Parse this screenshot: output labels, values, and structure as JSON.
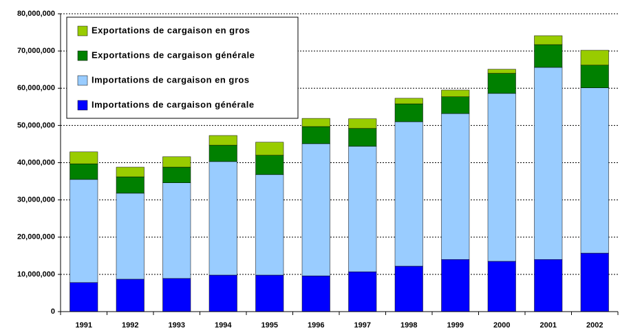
{
  "chart_data": {
    "type": "stacked-bar",
    "categories": [
      "1991",
      "1992",
      "1993",
      "1994",
      "1995",
      "1996",
      "1997",
      "1998",
      "1999",
      "2000",
      "2001",
      "2002"
    ],
    "series": [
      {
        "name": "Importations de cargaison générale",
        "color": "#0000ff",
        "values": [
          7800000,
          8700000,
          8900000,
          9800000,
          9800000,
          9600000,
          10700000,
          12200000,
          14000000,
          13500000,
          14000000,
          15700000
        ]
      },
      {
        "name": "Importations de cargaison en gros",
        "color": "#99ccff",
        "values": [
          27700000,
          23100000,
          25700000,
          30500000,
          27000000,
          35500000,
          33700000,
          38800000,
          39200000,
          45100000,
          51600000,
          44400000
        ]
      },
      {
        "name": "Exportations de cargaison générale",
        "color": "#008000",
        "values": [
          4200000,
          4400000,
          4200000,
          4400000,
          5200000,
          4600000,
          4800000,
          4800000,
          4500000,
          5400000,
          6100000,
          6100000
        ]
      },
      {
        "name": "Exportations de cargaison en gros",
        "color": "#99cc00",
        "values": [
          3200000,
          2600000,
          2800000,
          2600000,
          3500000,
          2200000,
          2600000,
          1500000,
          1800000,
          1100000,
          2400000,
          4000000
        ]
      }
    ],
    "ylim": [
      0,
      80000000
    ],
    "yticks": [
      0,
      {
        "value": 10000000,
        "label": "10,000,000"
      },
      {
        "value": 20000000,
        "label": "20,000,000"
      },
      {
        "value": 30000000,
        "label": "30,000,000"
      },
      {
        "value": 40000000,
        "label": "40,000,000"
      },
      {
        "value": 50000000,
        "label": "50,000,000"
      },
      {
        "value": 60000000,
        "label": "60,000,000"
      },
      {
        "value": 70000000,
        "label": "70,000,000"
      },
      {
        "value": 80000000,
        "label": "80,000,000"
      }
    ],
    "grid": true,
    "legend": "top-left"
  }
}
